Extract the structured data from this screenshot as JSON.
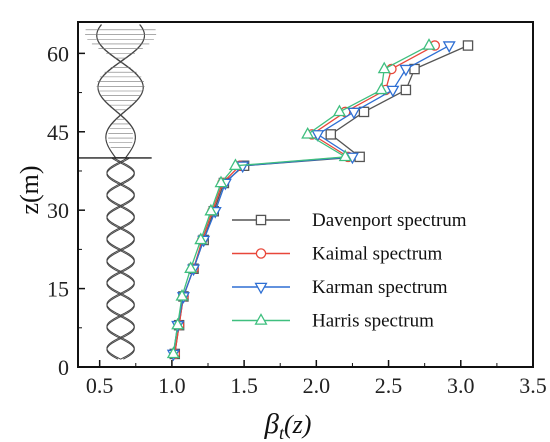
{
  "chart_data": {
    "type": "line",
    "xlabel": "βt(z)",
    "ylabel": "z(m)",
    "xlim": [
      0.35,
      3.5
    ],
    "ylim": [
      0,
      66
    ],
    "xticks": [
      "0.5",
      "1.0",
      "1.5",
      "2.0",
      "2.5",
      "3.0",
      "3.5"
    ],
    "yticks": [
      "0",
      "15",
      "30",
      "45",
      "60"
    ],
    "grid": false,
    "legend_position": "bottom-right",
    "series": [
      {
        "name": "Davenport spectrum",
        "color": "#555555",
        "marker": "square",
        "points": [
          [
            1.02,
            2.5
          ],
          [
            1.05,
            8.0
          ],
          [
            1.08,
            13.5
          ],
          [
            1.15,
            18.8
          ],
          [
            1.22,
            24.3
          ],
          [
            1.29,
            29.8
          ],
          [
            1.36,
            35.2
          ],
          [
            1.5,
            38.5
          ],
          [
            2.3,
            40.2
          ],
          [
            2.1,
            44.5
          ],
          [
            2.33,
            48.8
          ],
          [
            2.62,
            53.0
          ],
          [
            2.68,
            57.0
          ],
          [
            3.05,
            61.5
          ]
        ]
      },
      {
        "name": "Kaimal spectrum",
        "color": "#e8473a",
        "marker": "circle",
        "points": [
          [
            1.02,
            2.5
          ],
          [
            1.05,
            8.0
          ],
          [
            1.08,
            13.5
          ],
          [
            1.15,
            18.8
          ],
          [
            1.21,
            24.3
          ],
          [
            1.28,
            29.8
          ],
          [
            1.35,
            35.2
          ],
          [
            1.47,
            38.5
          ],
          [
            2.22,
            40.2
          ],
          [
            1.97,
            44.5
          ],
          [
            2.2,
            48.8
          ],
          [
            2.48,
            53.0
          ],
          [
            2.52,
            57.0
          ],
          [
            2.82,
            61.5
          ]
        ]
      },
      {
        "name": "Karman spectrum",
        "color": "#2e6fd3",
        "marker": "triangle-down",
        "points": [
          [
            1.01,
            2.5
          ],
          [
            1.04,
            8.0
          ],
          [
            1.08,
            13.5
          ],
          [
            1.15,
            18.8
          ],
          [
            1.22,
            24.3
          ],
          [
            1.3,
            29.8
          ],
          [
            1.37,
            35.2
          ],
          [
            1.49,
            38.5
          ],
          [
            2.25,
            40.2
          ],
          [
            2.01,
            44.5
          ],
          [
            2.26,
            48.8
          ],
          [
            2.53,
            53.0
          ],
          [
            2.62,
            57.0
          ],
          [
            2.92,
            61.5
          ]
        ]
      },
      {
        "name": "Harris spectrum",
        "color": "#3fbf7f",
        "marker": "triangle-up",
        "points": [
          [
            1.01,
            2.5
          ],
          [
            1.04,
            8.0
          ],
          [
            1.07,
            13.5
          ],
          [
            1.13,
            18.8
          ],
          [
            1.2,
            24.3
          ],
          [
            1.27,
            29.8
          ],
          [
            1.34,
            35.2
          ],
          [
            1.44,
            38.5
          ],
          [
            2.2,
            40.2
          ],
          [
            1.94,
            44.5
          ],
          [
            2.16,
            48.8
          ],
          [
            2.45,
            53.0
          ],
          [
            2.47,
            57.0
          ],
          [
            2.78,
            61.5
          ]
        ]
      }
    ]
  }
}
